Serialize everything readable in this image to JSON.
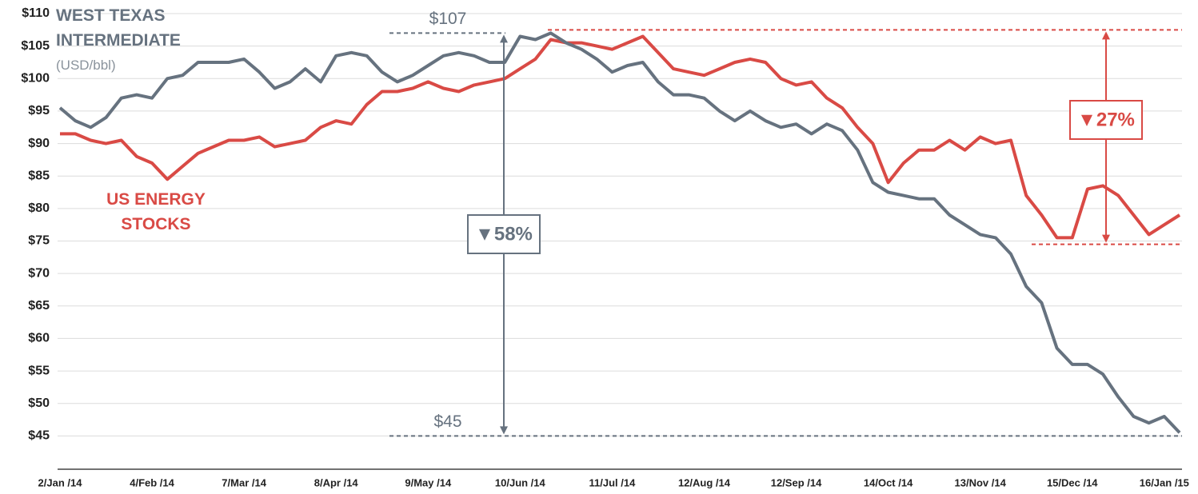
{
  "chart_data": {
    "type": "line",
    "subtitle": "(USD/bbl)",
    "categories": [
      "2/Jan /14",
      null,
      null,
      null,
      null,
      null,
      "4/Feb /14",
      null,
      null,
      null,
      null,
      null,
      "7/Mar /14",
      null,
      null,
      null,
      null,
      null,
      "8/Apr /14",
      null,
      null,
      null,
      null,
      null,
      "9/May /14",
      null,
      null,
      null,
      null,
      null,
      "10/Jun /14",
      null,
      null,
      null,
      null,
      null,
      "11/Jul /14",
      null,
      null,
      null,
      null,
      null,
      "12/Aug /14",
      null,
      null,
      null,
      null,
      null,
      "12/Sep /14",
      null,
      null,
      null,
      null,
      null,
      "14/Oct /14",
      null,
      null,
      null,
      null,
      null,
      "13/Nov /14",
      null,
      null,
      null,
      null,
      null,
      "15/Dec /14",
      null,
      null,
      null,
      null,
      null,
      "16/Jan /15",
      null
    ],
    "series": [
      {
        "name": "WEST TEXAS INTERMEDIATE",
        "color": "#66727f",
        "values": [
          95.5,
          93.5,
          92.5,
          94,
          97,
          97.5,
          97,
          100,
          100.5,
          102.5,
          102.5,
          102.5,
          103,
          101,
          98.5,
          99.5,
          101.5,
          99.5,
          103.5,
          104,
          103.5,
          101,
          99.5,
          100.5,
          102,
          103.5,
          104,
          103.5,
          102.5,
          102.5,
          106.5,
          106,
          107,
          105.5,
          104.5,
          103,
          101,
          102,
          102.5,
          99.5,
          97.5,
          97.5,
          97,
          95,
          93.5,
          95,
          93.5,
          92.5,
          93,
          91.5,
          93,
          92,
          89,
          84,
          82.5,
          82,
          81.5,
          81.5,
          79,
          77.5,
          76,
          75.5,
          73,
          68,
          65.5,
          58.5,
          56,
          56,
          54.5,
          51,
          48,
          47,
          48,
          45.5
        ]
      },
      {
        "name": "US ENERGY STOCKS",
        "color": "#d94a45",
        "values": [
          91.5,
          91.5,
          90.5,
          90,
          90.5,
          88,
          87,
          84.5,
          86.5,
          88.5,
          89.5,
          90.5,
          90.5,
          91,
          89.5,
          90,
          90.5,
          92.5,
          93.5,
          93,
          96,
          98,
          98,
          98.5,
          99.5,
          98.5,
          98,
          99,
          99.5,
          100,
          101.5,
          103,
          106,
          105.5,
          105.5,
          105,
          104.5,
          105.5,
          106.5,
          104,
          101.5,
          101,
          100.5,
          101.5,
          102.5,
          103,
          102.5,
          100,
          99,
          99.5,
          97,
          95.5,
          92.5,
          90,
          84,
          87,
          89,
          89,
          90.5,
          89,
          91,
          90,
          90.5,
          82,
          79,
          75.5,
          75.5,
          83,
          83.5,
          82,
          79,
          76,
          77.5,
          79
        ]
      }
    ],
    "ylim": [
      40,
      110
    ],
    "yticks": [
      {
        "value": 45,
        "label": "$45"
      },
      {
        "value": 50,
        "label": "$50"
      },
      {
        "value": 55,
        "label": "$55"
      },
      {
        "value": 60,
        "label": "$60"
      },
      {
        "value": 65,
        "label": "$65"
      },
      {
        "value": 70,
        "label": "$70"
      },
      {
        "value": 75,
        "label": "$75"
      },
      {
        "value": 80,
        "label": "$80"
      },
      {
        "value": 85,
        "label": "$85"
      },
      {
        "value": 90,
        "label": "$90"
      },
      {
        "value": 95,
        "label": "$95"
      },
      {
        "value": 100,
        "label": "$100"
      },
      {
        "value": 105,
        "label": "$105"
      },
      {
        "value": 110,
        "label": "$110"
      }
    ],
    "grid": true,
    "reference_lines": [
      {
        "value": 107,
        "label": "$107",
        "color": "#66727f"
      },
      {
        "value": 45,
        "label": "$45",
        "color": "#66727f"
      },
      {
        "value": 107.5,
        "color": "#d94a45"
      },
      {
        "value": 74.5,
        "color": "#d94a45"
      }
    ],
    "annotations": [
      {
        "text": "▼58%",
        "color": "#66727f"
      },
      {
        "text": "▼27%",
        "color": "#d94a45"
      }
    ]
  }
}
